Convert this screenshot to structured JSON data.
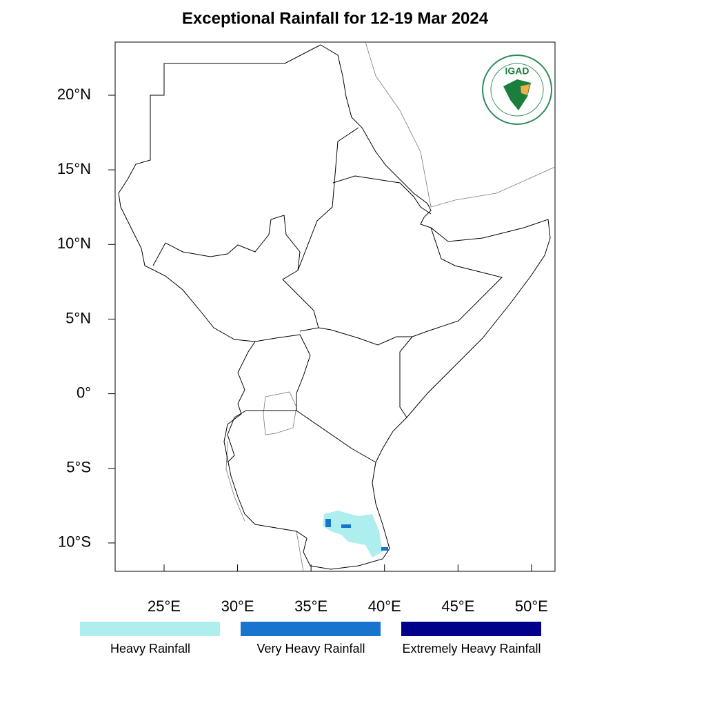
{
  "map": {
    "title": "Exceptional Rainfall for 12-19 Mar 2024",
    "logo_text": "IGAD",
    "xlim": [
      21.67,
      51.6
    ],
    "ylim": [
      -11.9,
      23.56
    ],
    "xticks": [
      {
        "value": 25,
        "label": "25°E"
      },
      {
        "value": 30,
        "label": "30°E"
      },
      {
        "value": 35,
        "label": "35°E"
      },
      {
        "value": 40,
        "label": "40°E"
      },
      {
        "value": 45,
        "label": "45°E"
      },
      {
        "value": 50,
        "label": "50°E"
      }
    ],
    "yticks": [
      {
        "value": 20,
        "label": "20°N"
      },
      {
        "value": 15,
        "label": "15°N"
      },
      {
        "value": 10,
        "label": "10°N"
      },
      {
        "value": 5,
        "label": "5°N"
      },
      {
        "value": 0,
        "label": "0°"
      },
      {
        "value": -5,
        "label": "5°S"
      },
      {
        "value": -10,
        "label": "10°S"
      }
    ],
    "legend": [
      {
        "name": "Heavy Rainfall",
        "color": "#afeeee"
      },
      {
        "name": "Very Heavy Rainfall",
        "color": "#1874cd"
      },
      {
        "name": "Extremely Heavy Rainfall",
        "color": "#00008b"
      }
    ]
  }
}
